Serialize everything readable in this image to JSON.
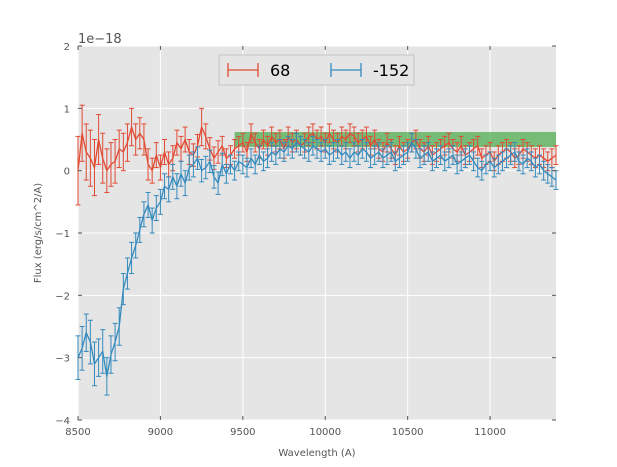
{
  "chart_data": {
    "type": "line",
    "subtype": "errorbar",
    "title": "",
    "xlabel": "Wavelength (A)",
    "ylabel": "Flux (erg/s/cm^2/A)",
    "y_offset_label": "1e−18",
    "xlim": [
      8500,
      11400
    ],
    "ylim": [
      -4,
      2
    ],
    "x_ticks": [
      8500,
      9000,
      9500,
      10000,
      10500,
      11000
    ],
    "x_tick_labels": [
      "8500",
      "9000",
      "9500",
      "10000",
      "10500",
      "11000"
    ],
    "y_ticks": [
      2,
      1,
      0,
      -1,
      -2,
      -3,
      -4
    ],
    "y_tick_labels": [
      "2",
      "1",
      "0",
      "−1",
      "−2",
      "−3",
      "−4"
    ],
    "grid": true,
    "legend_position": "top-center",
    "band": {
      "x_start": 9450,
      "x_end": 11400,
      "y_low": 0.38,
      "y_high": 0.62,
      "color": "#2ca02c",
      "alpha": 0.6
    },
    "series": [
      {
        "name": "68",
        "color": "#e24a33",
        "x": [
          8500,
          8525,
          8550,
          8575,
          8600,
          8625,
          8650,
          8675,
          8700,
          8725,
          8750,
          8775,
          8800,
          8825,
          8850,
          8875,
          8900,
          8925,
          8950,
          8975,
          9000,
          9025,
          9050,
          9075,
          9100,
          9125,
          9150,
          9175,
          9200,
          9225,
          9250,
          9275,
          9300,
          9325,
          9350,
          9375,
          9400,
          9425,
          9450,
          9475,
          9500,
          9525,
          9550,
          9575,
          9600,
          9625,
          9650,
          9675,
          9700,
          9725,
          9750,
          9775,
          9800,
          9825,
          9850,
          9875,
          9900,
          9925,
          9950,
          9975,
          10000,
          10025,
          10050,
          10075,
          10100,
          10125,
          10150,
          10175,
          10200,
          10225,
          10250,
          10275,
          10300,
          10325,
          10350,
          10375,
          10400,
          10425,
          10450,
          10475,
          10500,
          10525,
          10550,
          10575,
          10600,
          10625,
          10650,
          10675,
          10700,
          10725,
          10750,
          10775,
          10800,
          10825,
          10850,
          10875,
          10900,
          10925,
          10950,
          10975,
          11000,
          11025,
          11050,
          11075,
          11100,
          11125,
          11150,
          11175,
          11200,
          11225,
          11250,
          11275,
          11300,
          11325,
          11350,
          11375,
          11400
        ],
        "y": [
          0.0,
          0.6,
          0.3,
          0.2,
          0.05,
          0.5,
          0.2,
          0.0,
          0.1,
          0.15,
          0.35,
          0.3,
          0.45,
          0.7,
          0.5,
          0.6,
          0.5,
          0.1,
          0.0,
          0.25,
          0.05,
          0.3,
          0.1,
          0.2,
          0.45,
          0.35,
          0.5,
          0.3,
          0.25,
          0.4,
          0.7,
          0.55,
          0.35,
          0.2,
          0.3,
          0.4,
          0.2,
          0.25,
          0.35,
          0.4,
          0.45,
          0.3,
          0.6,
          0.45,
          0.35,
          0.5,
          0.4,
          0.55,
          0.45,
          0.5,
          0.35,
          0.55,
          0.45,
          0.5,
          0.4,
          0.45,
          0.55,
          0.6,
          0.5,
          0.55,
          0.45,
          0.6,
          0.5,
          0.45,
          0.55,
          0.5,
          0.6,
          0.55,
          0.45,
          0.5,
          0.55,
          0.4,
          0.5,
          0.35,
          0.3,
          0.45,
          0.35,
          0.25,
          0.4,
          0.3,
          0.35,
          0.45,
          0.5,
          0.35,
          0.3,
          0.4,
          0.25,
          0.3,
          0.35,
          0.4,
          0.45,
          0.35,
          0.3,
          0.4,
          0.25,
          0.3,
          0.35,
          0.4,
          0.2,
          0.25,
          0.3,
          0.15,
          0.25,
          0.3,
          0.35,
          0.3,
          0.2,
          0.25,
          0.35,
          0.3,
          0.25,
          0.2,
          0.25,
          0.2,
          0.15,
          0.2,
          0.25
        ],
        "yerr": [
          0.55,
          0.45,
          0.45,
          0.45,
          0.45,
          0.4,
          0.4,
          0.35,
          0.35,
          0.35,
          0.3,
          0.3,
          0.3,
          0.3,
          0.25,
          0.25,
          0.25,
          0.25,
          0.2,
          0.2,
          0.2,
          0.2,
          0.2,
          0.2,
          0.2,
          0.2,
          0.2,
          0.2,
          0.18,
          0.18,
          0.3,
          0.2,
          0.18,
          0.18,
          0.18,
          0.15,
          0.15,
          0.15,
          0.15,
          0.15,
          0.15,
          0.15,
          0.15,
          0.15,
          0.15,
          0.15,
          0.15,
          0.15,
          0.15,
          0.15,
          0.15,
          0.15,
          0.15,
          0.15,
          0.15,
          0.15,
          0.15,
          0.15,
          0.15,
          0.15,
          0.15,
          0.15,
          0.15,
          0.15,
          0.15,
          0.15,
          0.15,
          0.15,
          0.15,
          0.15,
          0.15,
          0.15,
          0.15,
          0.15,
          0.15,
          0.15,
          0.15,
          0.15,
          0.15,
          0.15,
          0.15,
          0.15,
          0.15,
          0.15,
          0.15,
          0.15,
          0.15,
          0.15,
          0.15,
          0.15,
          0.15,
          0.15,
          0.15,
          0.15,
          0.15,
          0.15,
          0.15,
          0.15,
          0.15,
          0.15,
          0.15,
          0.15,
          0.15,
          0.15,
          0.15,
          0.15,
          0.15,
          0.15,
          0.15,
          0.15,
          0.15,
          0.15,
          0.15,
          0.15,
          0.15,
          0.15,
          0.15
        ]
      },
      {
        "name": "-152",
        "color": "#348abd",
        "x": [
          8500,
          8525,
          8550,
          8575,
          8600,
          8625,
          8650,
          8675,
          8700,
          8725,
          8750,
          8775,
          8800,
          8825,
          8850,
          8875,
          8900,
          8925,
          8950,
          8975,
          9000,
          9025,
          9050,
          9075,
          9100,
          9125,
          9150,
          9175,
          9200,
          9225,
          9250,
          9275,
          9300,
          9325,
          9350,
          9375,
          9400,
          9425,
          9450,
          9475,
          9500,
          9525,
          9550,
          9575,
          9600,
          9625,
          9650,
          9675,
          9700,
          9725,
          9750,
          9775,
          9800,
          9825,
          9850,
          9875,
          9900,
          9925,
          9950,
          9975,
          10000,
          10025,
          10050,
          10075,
          10100,
          10125,
          10150,
          10175,
          10200,
          10225,
          10250,
          10275,
          10300,
          10325,
          10350,
          10375,
          10400,
          10425,
          10450,
          10475,
          10500,
          10525,
          10550,
          10575,
          10600,
          10625,
          10650,
          10675,
          10700,
          10725,
          10750,
          10775,
          10800,
          10825,
          10850,
          10875,
          10900,
          10925,
          10950,
          10975,
          11000,
          11025,
          11050,
          11075,
          11100,
          11125,
          11150,
          11175,
          11200,
          11225,
          11250,
          11275,
          11300,
          11325,
          11350,
          11375,
          11400
        ],
        "y": [
          -3.0,
          -2.85,
          -2.6,
          -2.75,
          -3.1,
          -3.0,
          -2.9,
          -3.3,
          -2.95,
          -2.75,
          -2.5,
          -1.9,
          -1.65,
          -1.4,
          -1.2,
          -0.95,
          -0.7,
          -0.55,
          -0.8,
          -0.6,
          -0.5,
          -0.25,
          -0.3,
          -0.1,
          -0.25,
          -0.05,
          -0.2,
          0.05,
          0.1,
          0.2,
          0.0,
          0.05,
          0.15,
          -0.1,
          -0.2,
          0.1,
          -0.05,
          0.1,
          0.0,
          0.15,
          0.1,
          0.05,
          0.2,
          0.1,
          0.25,
          0.15,
          0.2,
          0.3,
          0.25,
          0.35,
          0.3,
          0.4,
          0.35,
          0.45,
          0.4,
          0.35,
          0.3,
          0.4,
          0.35,
          0.3,
          0.35,
          0.25,
          0.3,
          0.35,
          0.25,
          0.3,
          0.2,
          0.3,
          0.25,
          0.35,
          0.3,
          0.2,
          0.25,
          0.3,
          0.2,
          0.25,
          0.3,
          0.15,
          0.2,
          0.25,
          0.3,
          0.45,
          0.35,
          0.2,
          0.25,
          0.3,
          0.15,
          0.2,
          0.25,
          0.15,
          0.2,
          0.25,
          0.1,
          0.15,
          0.2,
          0.25,
          0.15,
          0.05,
          0.0,
          0.1,
          0.15,
          0.05,
          0.1,
          0.15,
          0.2,
          0.25,
          0.3,
          0.15,
          0.1,
          0.2,
          0.15,
          0.05,
          0.1,
          0.0,
          -0.05,
          -0.1,
          -0.15
        ],
        "yerr": [
          0.35,
          0.35,
          0.3,
          0.35,
          0.35,
          0.3,
          0.35,
          0.3,
          0.3,
          0.3,
          0.3,
          0.25,
          0.25,
          0.25,
          0.2,
          0.2,
          0.2,
          0.2,
          0.2,
          0.2,
          0.2,
          0.2,
          0.2,
          0.2,
          0.2,
          0.2,
          0.2,
          0.2,
          0.2,
          0.18,
          0.18,
          0.18,
          0.18,
          0.18,
          0.18,
          0.18,
          0.15,
          0.15,
          0.15,
          0.15,
          0.15,
          0.15,
          0.15,
          0.15,
          0.15,
          0.15,
          0.15,
          0.15,
          0.15,
          0.15,
          0.15,
          0.15,
          0.15,
          0.15,
          0.15,
          0.15,
          0.15,
          0.15,
          0.15,
          0.15,
          0.15,
          0.15,
          0.15,
          0.15,
          0.15,
          0.15,
          0.15,
          0.15,
          0.15,
          0.15,
          0.15,
          0.15,
          0.15,
          0.15,
          0.15,
          0.15,
          0.15,
          0.15,
          0.15,
          0.15,
          0.15,
          0.15,
          0.15,
          0.15,
          0.15,
          0.15,
          0.15,
          0.15,
          0.15,
          0.15,
          0.15,
          0.15,
          0.15,
          0.15,
          0.15,
          0.15,
          0.15,
          0.15,
          0.15,
          0.15,
          0.15,
          0.15,
          0.15,
          0.15,
          0.15,
          0.15,
          0.15,
          0.15,
          0.15,
          0.15,
          0.15,
          0.15,
          0.15,
          0.15,
          0.15,
          0.15,
          0.15
        ]
      }
    ]
  }
}
